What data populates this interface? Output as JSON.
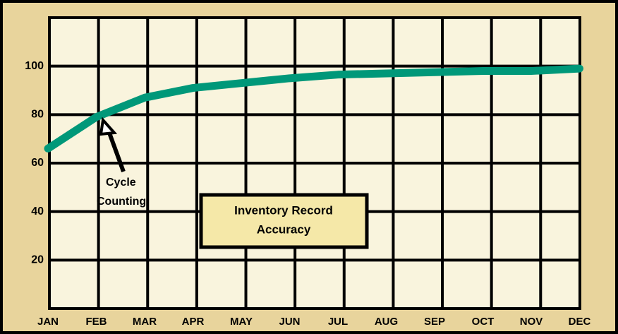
{
  "chart_data": {
    "type": "line",
    "categories": [
      "JAN",
      "FEB",
      "MAR",
      "APR",
      "MAY",
      "JUN",
      "JUL",
      "AUG",
      "SEP",
      "OCT",
      "NOV",
      "DEC"
    ],
    "series": [
      {
        "name": "Inventory Record Accuracy",
        "color": "#009879",
        "values": [
          66,
          79,
          87,
          91,
          93,
          95,
          96.5,
          97,
          97.5,
          98,
          98,
          99
        ]
      }
    ],
    "ylim": [
      0,
      120
    ],
    "yticks": [
      20,
      40,
      60,
      80,
      100
    ],
    "grid": true,
    "annotations": [
      [
        "Cycle",
        "Counting"
      ],
      [
        "Inventory Record",
        "Accuracy"
      ]
    ]
  }
}
